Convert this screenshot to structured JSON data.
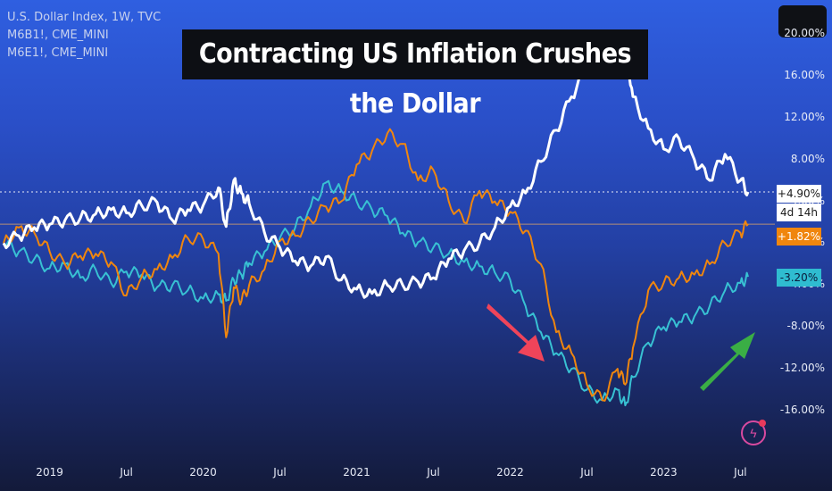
{
  "legend": {
    "line1": "U.S. Dollar Index, 1W, TVC",
    "line2": "M6B1!, CME_MINI",
    "line3": "M6E1!, CME_MINI"
  },
  "title": "Contracting US Inflation Crushes the Dollar",
  "badges": {
    "usd": "+4.90%",
    "countdown": "4d 14h",
    "gbp": "+1.82%",
    "eur": "-3.20%"
  },
  "colors": {
    "usd": "#ffffff",
    "gbp": "#f0860e",
    "eur": "#38c1d3",
    "red_arrow": "#f0445a",
    "green_arrow": "#3aae45"
  },
  "icons": {
    "bolt": "lightning-icon"
  },
  "chart_data": {
    "type": "line",
    "y_axis_labels": [
      "20.00%",
      "16.00%",
      "12.00%",
      "8.00%",
      "4.00%",
      "0.00%",
      "-4.00%",
      "-8.00%",
      "-12.00%",
      "-16.00%"
    ],
    "x_axis_labels": [
      "2019",
      "Jul",
      "2020",
      "Jul",
      "2021",
      "Jul",
      "2022",
      "Jul",
      "2023",
      "Jul"
    ],
    "ylim": [
      -18,
      22
    ],
    "x": [
      2018.7,
      2018.8,
      2018.9,
      2019.0,
      2019.1,
      2019.2,
      2019.3,
      2019.4,
      2019.5,
      2019.6,
      2019.7,
      2019.8,
      2019.9,
      2020.0,
      2020.1,
      2020.15,
      2020.2,
      2020.25,
      2020.3,
      2020.4,
      2020.5,
      2020.6,
      2020.7,
      2020.8,
      2020.9,
      2021.0,
      2021.1,
      2021.2,
      2021.3,
      2021.4,
      2021.5,
      2021.6,
      2021.7,
      2021.8,
      2021.9,
      2022.0,
      2022.1,
      2022.2,
      2022.3,
      2022.4,
      2022.5,
      2022.6,
      2022.7,
      2022.75,
      2022.8,
      2022.9,
      2023.0,
      2023.1,
      2023.2,
      2023.3,
      2023.4,
      2023.5,
      2023.55
    ],
    "series": [
      {
        "name": "U.S. Dollar Index, 1W, TVC",
        "values": [
          0.0,
          0.7,
          1.5,
          1.8,
          2.2,
          2.4,
          2.8,
          3.2,
          2.9,
          3.6,
          3.9,
          2.2,
          3.2,
          3.6,
          5.3,
          1.6,
          6.0,
          4.8,
          3.8,
          1.0,
          -0.4,
          -1.7,
          -2.2,
          -1.3,
          -3.5,
          -4.4,
          -4.8,
          -4.0,
          -4.0,
          -3.7,
          -3.3,
          -1.5,
          -0.7,
          0.0,
          1.5,
          3.5,
          4.8,
          7.8,
          10.8,
          14.0,
          16.5,
          17.5,
          17.0,
          19.0,
          14.0,
          11.0,
          9.0,
          10.0,
          8.0,
          6.0,
          8.5,
          6.0,
          4.9
        ]
      },
      {
        "name": "M6B1!, CME_MINI",
        "values": [
          0.0,
          1.5,
          1.0,
          -0.8,
          -2.0,
          -1.2,
          -1.0,
          -1.8,
          -5.0,
          -3.2,
          -2.5,
          -1.4,
          0.5,
          0.4,
          -1.0,
          -9.0,
          -4.2,
          -5.5,
          -4.0,
          -2.5,
          0.2,
          0.7,
          2.2,
          3.5,
          4.0,
          7.5,
          8.8,
          10.5,
          9.5,
          6.0,
          7.0,
          4.0,
          2.0,
          5.0,
          4.0,
          3.0,
          1.2,
          -2.0,
          -8.5,
          -10.5,
          -13.5,
          -15.0,
          -12.0,
          -13.5,
          -10.0,
          -4.5,
          -3.8,
          -3.3,
          -3.0,
          -2.0,
          0.0,
          1.0,
          1.82
        ]
      },
      {
        "name": "M6E1!, CME_MINI",
        "values": [
          0.0,
          -0.8,
          -1.5,
          -2.4,
          -2.0,
          -3.3,
          -2.5,
          -3.8,
          -2.7,
          -3.0,
          -4.2,
          -4.0,
          -4.5,
          -5.3,
          -4.9,
          -5.5,
          -3.5,
          -3.0,
          -1.9,
          -0.8,
          0.5,
          1.5,
          3.5,
          5.8,
          5.0,
          4.0,
          3.2,
          2.6,
          1.0,
          0.1,
          -0.4,
          -1.0,
          -1.8,
          -2.2,
          -2.8,
          -3.5,
          -6.0,
          -8.5,
          -10.5,
          -12.0,
          -14.0,
          -15.0,
          -14.0,
          -15.5,
          -12.8,
          -9.5,
          -8.0,
          -7.5,
          -7.0,
          -6.0,
          -4.5,
          -3.8,
          -3.2
        ]
      }
    ],
    "reference_lines": [
      4.9,
      1.82
    ],
    "grid": false,
    "legend_position": "top-left"
  }
}
